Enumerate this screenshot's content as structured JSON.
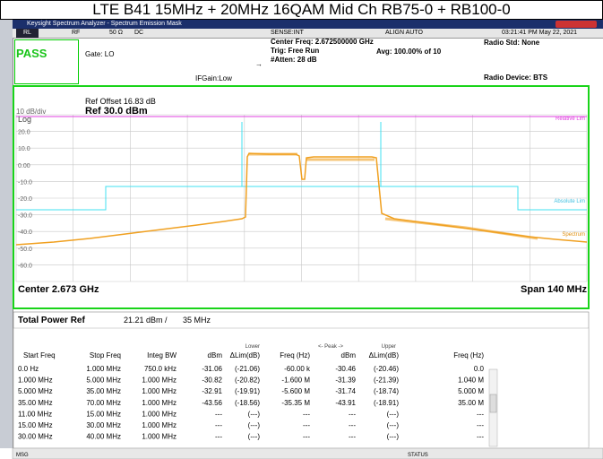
{
  "banner": "LTE B41 15MHz + 20MHz 16QAM Mid Ch RB75-0 + RB100-0",
  "window_title": "Keysight Spectrum Analyzer - Spectrum Emission Mask",
  "menu": [
    "RL",
    "RF",
    "50 Ω",
    "DC",
    "SENSE:INT",
    "ALIGN AUTO",
    "03:21:41 PM May 22, 2021"
  ],
  "status": {
    "pass": "PASS",
    "gate": "Gate: LO",
    "ifgain": "IFGain:Low",
    "center_freq": "Center Freq: 2.672500000 GHz",
    "trig": "Trig: Free Run",
    "atten": "#Atten: 28 dB",
    "avg": "Avg: 100.00% of 10",
    "radio_std": "Radio Std: None",
    "radio_device": "Radio Device: BTS"
  },
  "graph": {
    "ref_offset": "Ref Offset 16.83 dB",
    "scale": "10 dB/div",
    "ref": "Ref 30.0 dBm",
    "log": "Log",
    "y_labels": [
      "20.0",
      "10.0",
      "0.00",
      "-10.0",
      "-20.0",
      "-30.0",
      "-40.0",
      "-50.0",
      "-60.0"
    ],
    "trace_labels": [
      "Relative Lim",
      "Absolute Lim",
      "Spectrum"
    ],
    "center": "Center 2.673 GHz",
    "span": "Span 140 MHz"
  },
  "total_power": {
    "label": "Total Power Ref",
    "value": "21.21 dBm /",
    "bw": "35 MHz"
  },
  "table": {
    "group_headers": [
      "Lower",
      "<- Peak ->",
      "Upper"
    ],
    "headers": [
      "Start Freq",
      "Stop Freq",
      "Integ BW",
      "dBm",
      "ΔLim(dB)",
      "Freq (Hz)",
      "dBm",
      "ΔLim(dB)",
      "Freq (Hz)"
    ],
    "rows": [
      [
        "0.0 Hz",
        "1.000 MHz",
        "750.0 kHz",
        "-31.06",
        "(-21.06)",
        "-60.00 k",
        "-30.46",
        "(-20.46)",
        "0.0"
      ],
      [
        "1.000 MHz",
        "5.000 MHz",
        "1.000 MHz",
        "-30.82",
        "(-20.82)",
        "-1.600 M",
        "-31.39",
        "(-21.39)",
        "1.040 M"
      ],
      [
        "5.000 MHz",
        "35.00 MHz",
        "1.000 MHz",
        "-32.91",
        "(-19.91)",
        "-5.600 M",
        "-31.74",
        "(-18.74)",
        "5.000 M"
      ],
      [
        "35.00 MHz",
        "70.00 MHz",
        "1.000 MHz",
        "-43.56",
        "(-18.56)",
        "-35.35 M",
        "-43.91",
        "(-18.91)",
        "35.00 M"
      ],
      [
        "11.00 MHz",
        "15.00 MHz",
        "1.000 MHz",
        "---",
        "(---)",
        "---",
        "---",
        "(---)",
        "---"
      ],
      [
        "15.00 MHz",
        "30.00 MHz",
        "1.000 MHz",
        "---",
        "(---)",
        "---",
        "---",
        "(---)",
        "---"
      ],
      [
        "30.00 MHz",
        "40.00 MHz",
        "1.000 MHz",
        "---",
        "(---)",
        "---",
        "---",
        "(---)",
        "---"
      ]
    ]
  },
  "footer": [
    "MSG",
    "STATUS"
  ]
}
